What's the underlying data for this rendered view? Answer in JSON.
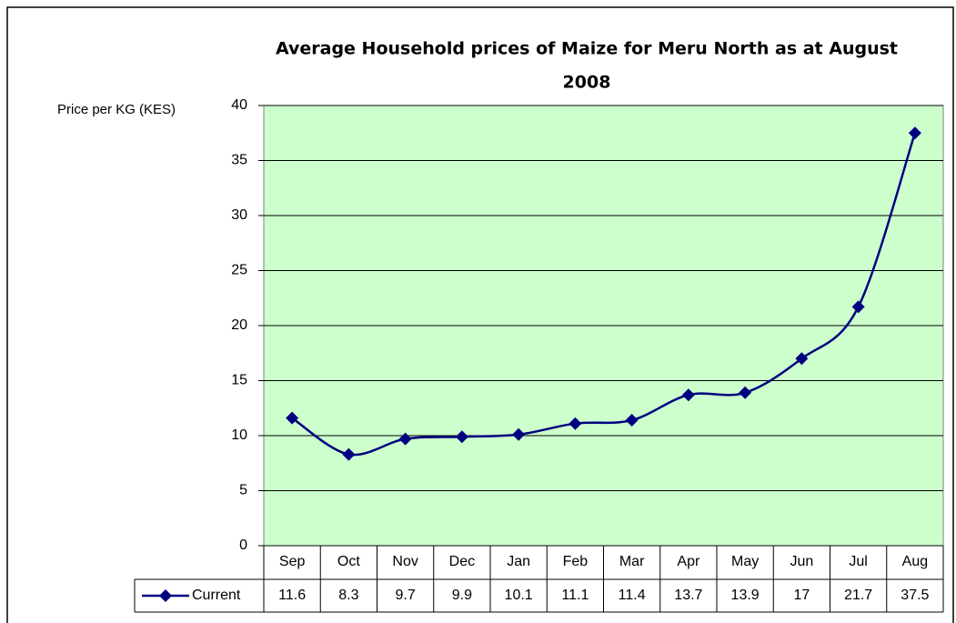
{
  "chart_data": {
    "type": "line",
    "title": [
      "Average Household prices of Maize for Meru North as at August",
      "2008"
    ],
    "y_label": "Price per KG (KES)",
    "categories": [
      "Sep",
      "Oct",
      "Nov",
      "Dec",
      "Jan",
      "Feb",
      "Mar",
      "Apr",
      "May",
      "Jun",
      "Jul",
      "Aug"
    ],
    "series": [
      {
        "name": "Current",
        "color": "#000080",
        "values": [
          11.6,
          8.3,
          9.7,
          9.9,
          10.1,
          11.1,
          11.4,
          13.7,
          13.9,
          17,
          21.7,
          37.5
        ]
      }
    ],
    "ylim": [
      0,
      40
    ],
    "yticks": [
      0,
      5,
      10,
      15,
      20,
      25,
      30,
      35,
      40
    ],
    "grid": true,
    "background": "#ccffcc",
    "smooth": true,
    "data_table": true
  }
}
